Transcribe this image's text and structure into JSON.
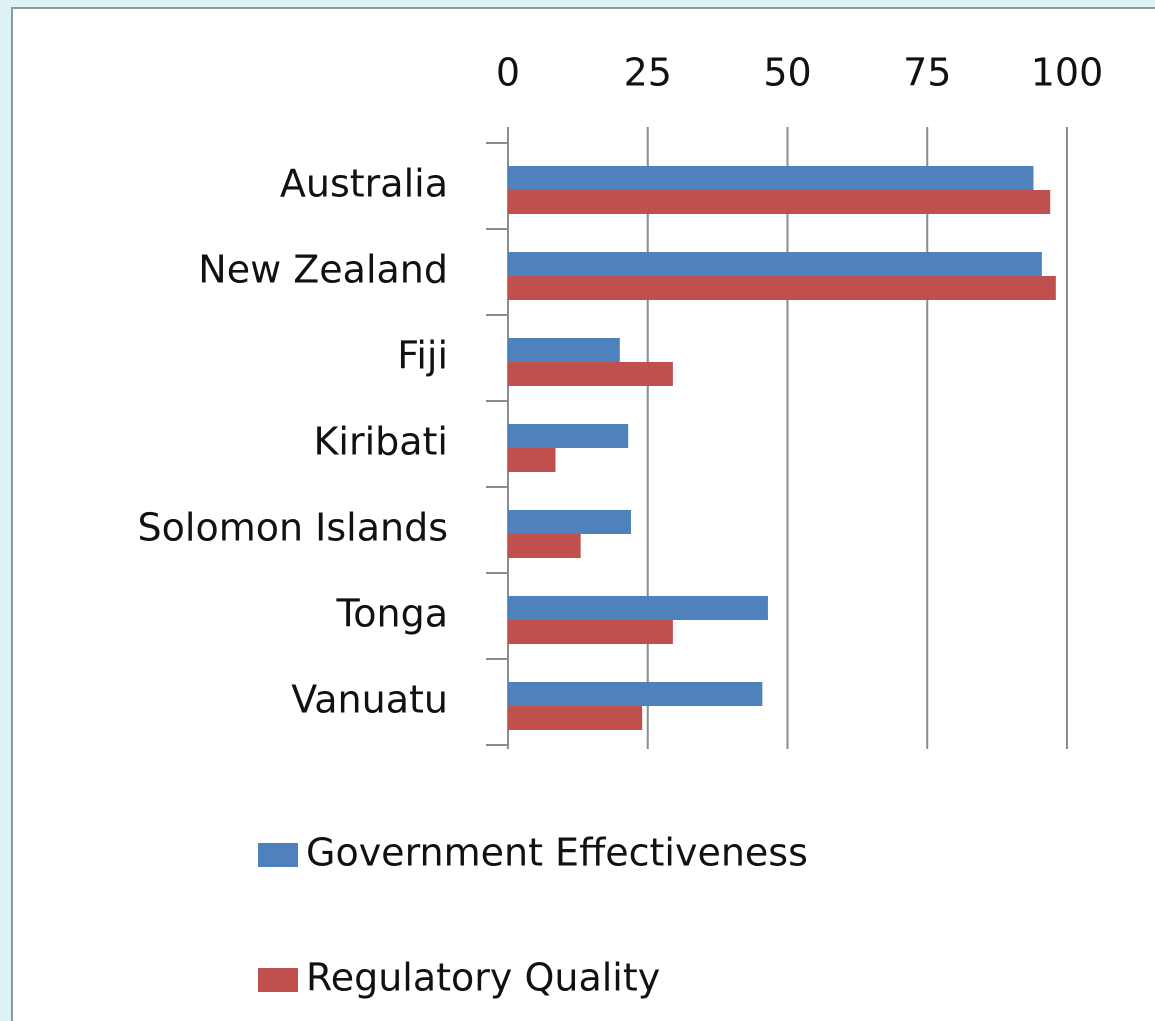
{
  "chart_data": {
    "type": "bar",
    "orientation": "horizontal",
    "categories": [
      "Australia",
      "New Zealand",
      "Fiji",
      "Kiribati",
      "Solomon Islands",
      "Tonga",
      "Vanuatu"
    ],
    "series": [
      {
        "name": "Government Effectiveness",
        "color": "#4f81bd",
        "values": [
          94,
          95.5,
          20,
          21.5,
          22,
          46.5,
          45.5
        ]
      },
      {
        "name": "Regulatory Quality",
        "color": "#c0504d",
        "values": [
          97,
          98,
          29.5,
          8.5,
          13,
          29.5,
          24
        ]
      }
    ],
    "xlim": [
      0,
      100
    ],
    "xticks": [
      0,
      25,
      50,
      75,
      100
    ],
    "grid": true,
    "legend": "bottom"
  }
}
